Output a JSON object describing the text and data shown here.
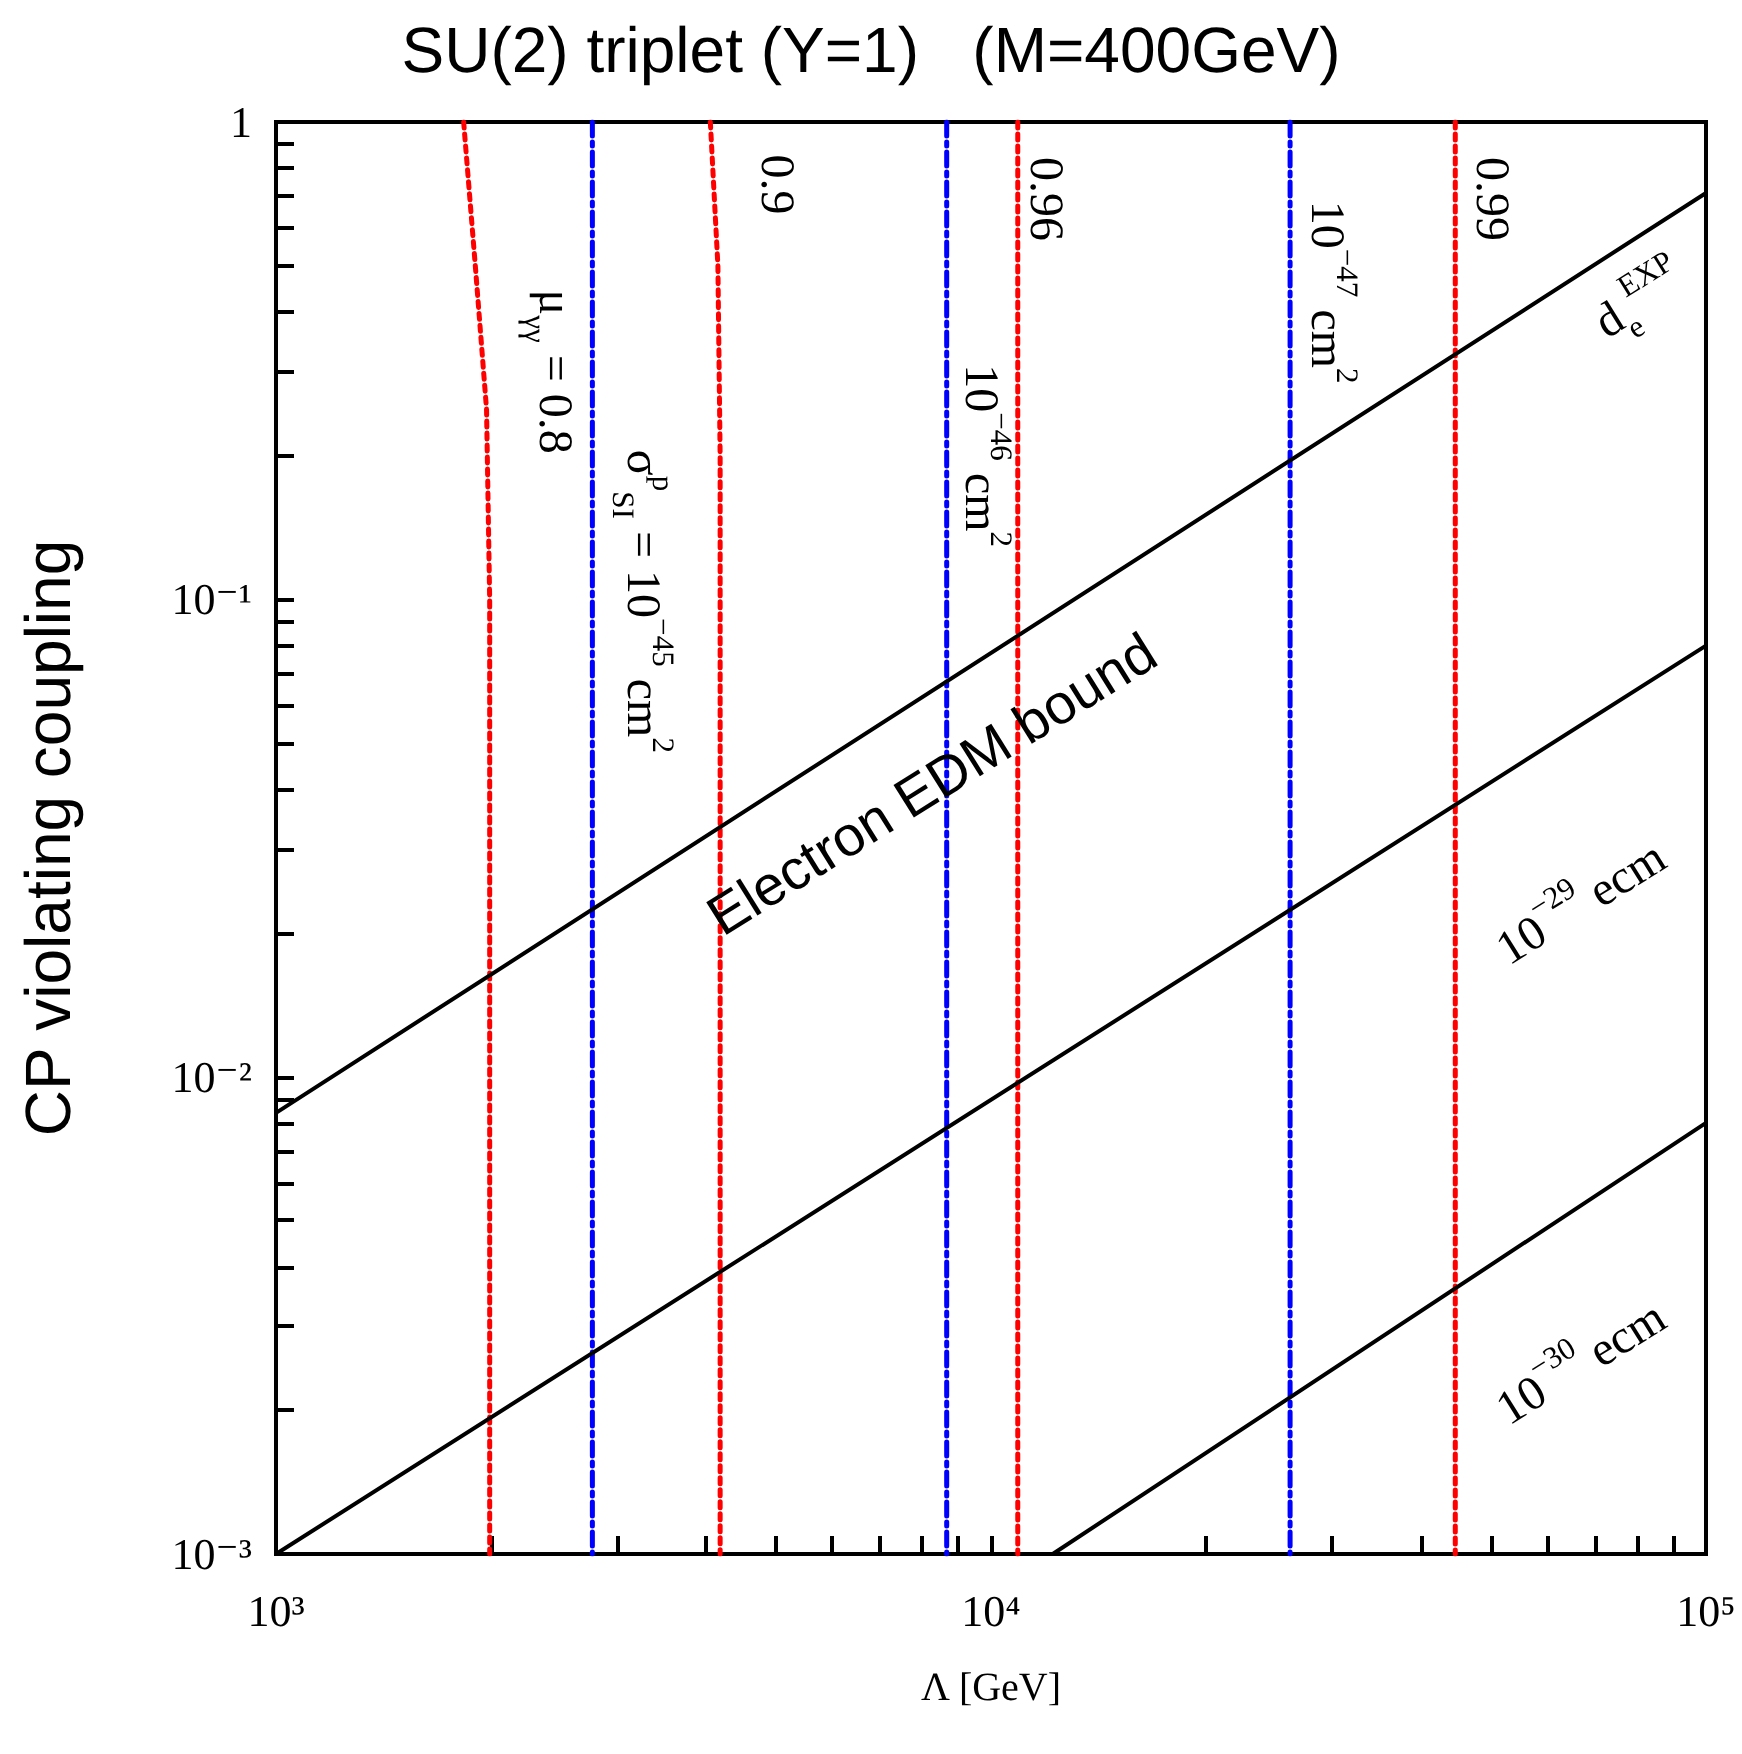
{
  "chart_data": {
    "type": "line",
    "title": "SU(2) triplet (Y=1)   (M=400GeV)",
    "xlabel": "Λ [GeV]",
    "ylabel": "CP violating coupling",
    "log": "xy",
    "grid": false,
    "marker": "none",
    "xlim": [
      1000,
      100000
    ],
    "ylim": [
      0.001,
      1
    ],
    "xticks": [
      {
        "value": 1000,
        "label": "10³"
      },
      {
        "value": 2000,
        "label": null
      },
      {
        "value": 3000,
        "label": null
      },
      {
        "value": 4000,
        "label": null
      },
      {
        "value": 5000,
        "label": null
      },
      {
        "value": 6000,
        "label": null
      },
      {
        "value": 7000,
        "label": null
      },
      {
        "value": 8000,
        "label": null
      },
      {
        "value": 9000,
        "label": null
      },
      {
        "value": 10000,
        "label": "10⁴"
      },
      {
        "value": 20000,
        "label": null
      },
      {
        "value": 30000,
        "label": null
      },
      {
        "value": 40000,
        "label": null
      },
      {
        "value": 50000,
        "label": null
      },
      {
        "value": 60000,
        "label": null
      },
      {
        "value": 70000,
        "label": null
      },
      {
        "value": 80000,
        "label": null
      },
      {
        "value": 90000,
        "label": null
      },
      {
        "value": 100000,
        "label": "10⁵"
      }
    ],
    "yticks": [
      {
        "value": 0.001,
        "label": "10⁻³"
      },
      {
        "value": 0.002,
        "label": null
      },
      {
        "value": 0.003,
        "label": null
      },
      {
        "value": 0.004,
        "label": null
      },
      {
        "value": 0.005,
        "label": null
      },
      {
        "value": 0.006,
        "label": null
      },
      {
        "value": 0.007,
        "label": null
      },
      {
        "value": 0.008,
        "label": null
      },
      {
        "value": 0.009,
        "label": null
      },
      {
        "value": 0.01,
        "label": "10⁻²"
      },
      {
        "value": 0.02,
        "label": null
      },
      {
        "value": 0.03,
        "label": null
      },
      {
        "value": 0.04,
        "label": null
      },
      {
        "value": 0.05,
        "label": null
      },
      {
        "value": 0.06,
        "label": null
      },
      {
        "value": 0.07,
        "label": null
      },
      {
        "value": 0.08,
        "label": null
      },
      {
        "value": 0.09,
        "label": null
      },
      {
        "value": 0.1,
        "label": "10⁻¹"
      },
      {
        "value": 0.2,
        "label": null
      },
      {
        "value": 0.3,
        "label": null
      },
      {
        "value": 0.4,
        "label": null
      },
      {
        "value": 0.5,
        "label": null
      },
      {
        "value": 0.6,
        "label": null
      },
      {
        "value": 0.7,
        "label": null
      },
      {
        "value": 0.8,
        "label": null
      },
      {
        "value": 0.9,
        "label": null
      },
      {
        "value": 1,
        "label": "1"
      }
    ],
    "series": [
      {
        "color": "#000000",
        "line_style": "solid",
        "x": [
          1000,
          100000
        ],
        "values": [
          0.0084,
          0.71
        ]
      },
      {
        "color": "#000000",
        "line_style": "solid",
        "x": [
          1000,
          100000
        ],
        "values": [
          0.001,
          0.08
        ]
      },
      {
        "color": "#000000",
        "line_style": "solid",
        "x": [
          12200,
          100000
        ],
        "values": [
          0.001,
          0.008
        ]
      },
      {
        "color": "#ff0000",
        "line_style": "dotted",
        "x": [
          1830,
          1900,
          1970,
          1990,
          1990
        ],
        "values": [
          1,
          0.5,
          0.25,
          0.1,
          0.001
        ]
      },
      {
        "color": "#ff0000",
        "line_style": "dotted",
        "x": [
          4050,
          4150,
          4180,
          4180
        ],
        "values": [
          1,
          0.5,
          0.2,
          0.001
        ]
      },
      {
        "color": "#ff0000",
        "line_style": "dotted",
        "x": [
          10900,
          10900
        ],
        "values": [
          1,
          0.001
        ]
      },
      {
        "color": "#ff0000",
        "line_style": "dotted",
        "x": [
          44600,
          44600
        ],
        "values": [
          1,
          0.001
        ]
      },
      {
        "color": "#0000ff",
        "line_style": "dashed",
        "x": [
          2770,
          2770
        ],
        "values": [
          1,
          0.001
        ]
      },
      {
        "color": "#0000ff",
        "line_style": "dashed",
        "x": [
          8670,
          8670
        ],
        "values": [
          1,
          0.001
        ]
      },
      {
        "color": "#0000ff",
        "line_style": "dashed",
        "x": [
          26200,
          26200
        ],
        "values": [
          1,
          0.001
        ]
      }
    ],
    "annotations": [
      "μ$_{γγ}$ = 0.8",
      "0.9",
      "0.96",
      "0.99",
      "σ$^{p}$$_{SI}$ = 10$^{−45}$ cm$^{2}$",
      "10$^{−46}$ cm$^{2}$",
      "10$^{−47}$ cm$^{2}$",
      "d$_{e}$$^{EXP}$",
      "10$^{−29}$ ecm",
      "10$^{−30}$ ecm",
      "Electron EDM bound"
    ]
  }
}
